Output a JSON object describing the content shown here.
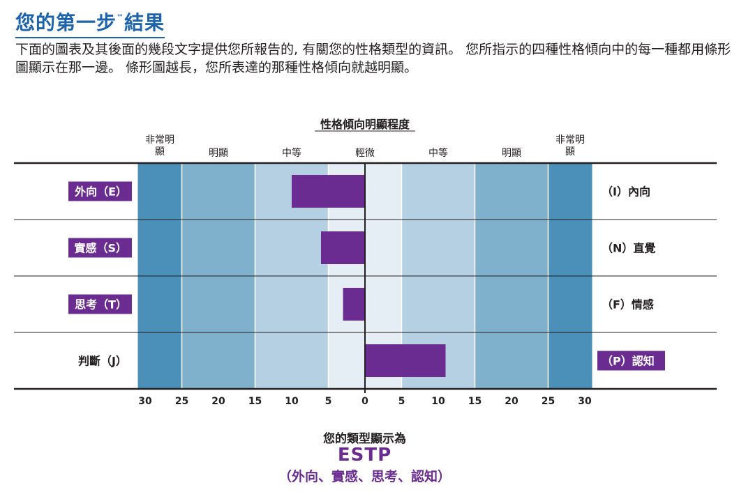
{
  "page": {
    "title": "您的第一步",
    "title_tm": "™",
    "title_suffix": "結果",
    "intro": "下面的圖表及其後面的幾段文字提供您所報告的, 有關您的性格類型的資訊。 您所指示的四種性格傾向中的每一種都用條形圖顯示在那一邊。 條形圖越長，您所表達的那種性格傾向就越明顯。"
  },
  "chart_data": {
    "type": "bar",
    "orientation": "horizontal-diverging",
    "title": "性格傾向明顯程度",
    "bands": [
      {
        "label_lines": [
          "非常明",
          "顯"
        ],
        "range": [
          25,
          31
        ],
        "color": "#4a90b8"
      },
      {
        "label_lines": [
          "明顯"
        ],
        "range": [
          15,
          25
        ],
        "color": "#7fb0cc"
      },
      {
        "label_lines": [
          "中等"
        ],
        "range": [
          5,
          15
        ],
        "color": "#b4d0e2"
      },
      {
        "label_lines": [
          "輕微"
        ],
        "range": [
          0,
          5
        ],
        "color": "#e5eef5"
      }
    ],
    "slight_label": "輕微",
    "x_ticks_left": [
      30,
      25,
      20,
      15,
      10,
      5,
      0
    ],
    "x_ticks_right": [
      5,
      10,
      15,
      20,
      25,
      30
    ],
    "xlim": [
      -31,
      31
    ],
    "bar_color": "#6b2c91",
    "rows": [
      {
        "left_label": "外向（E）",
        "right_label": "（I）內向",
        "value": -10,
        "selected": "left"
      },
      {
        "left_label": "實感（S）",
        "right_label": "（N）直覺",
        "value": -6,
        "selected": "left"
      },
      {
        "left_label": "思考（T）",
        "right_label": "（F）情感",
        "value": -3,
        "selected": "left"
      },
      {
        "left_label": "判斷（J）",
        "right_label": "（P）認知",
        "value": 11,
        "selected": "right"
      }
    ]
  },
  "result": {
    "label": "您的類型顯示為",
    "type": "ESTP",
    "description": "（外向、實感、思考、認知）"
  }
}
